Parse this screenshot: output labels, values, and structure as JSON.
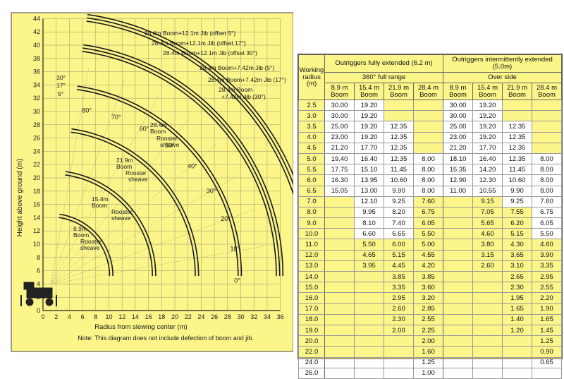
{
  "diagram": {
    "y_axis_label": "Height above ground (m)",
    "x_axis_label": "Radius from slewing center (m)",
    "note": "Note: This diagram does not include defection of boom and jib.",
    "y_ticks": [
      "0",
      "2",
      "4",
      "6",
      "8",
      "10",
      "12",
      "14",
      "16",
      "18",
      "20",
      "22",
      "24",
      "26",
      "28",
      "30",
      "32",
      "34",
      "36",
      "38",
      "40",
      "42",
      "44"
    ],
    "x_ticks": [
      "0",
      "2",
      "4",
      "6",
      "8",
      "10",
      "12",
      "14",
      "16",
      "18",
      "20",
      "22",
      "24",
      "26",
      "28",
      "30",
      "32",
      "34",
      "36"
    ],
    "angle_labels": [
      "80°",
      "70°",
      "60°",
      "50°",
      "40°",
      "30°",
      "20°",
      "10°",
      "0°"
    ],
    "jib_angle_labels": [
      "30°",
      "17°",
      "5°"
    ],
    "curve_labels": {
      "boom_28_4_jib_12_1_5": "28.4m Boom+12.1m Jib (offset 5°)",
      "boom_28_4_jib_12_1_17": "28.4m Boom+12.1m Jib (offset 17°)",
      "boom_28_4_jib_12_1_30": "28.4m Boom+12.1m Jib (offset 30°)",
      "boom_28_4_jib_7_42_5": "28.4m Boom+7.42m Jib (5°)",
      "boom_28_4_jib_7_42_17": "28.4m Boom+7.42m Jib (17°)",
      "boom_28_4_jib_7_42_30_a": "28.4m Boom",
      "boom_28_4_jib_7_42_30_b": "+7.42m Jib (30°)",
      "boom_28_4_a": "28.4m",
      "boom_28_4_b": "Boom",
      "boom_28_4_c": "Rooster",
      "boom_28_4_d": "sheave",
      "boom_21_9_a": "21.9m",
      "boom_21_9_b": "Boom",
      "boom_21_9_c": "Rooster",
      "boom_21_9_d": "sheave",
      "boom_15_4_a": "15.4m",
      "boom_15_4_b": "Boom",
      "boom_15_4_c": "Rooster",
      "boom_15_4_d": "sheave",
      "boom_8_9_a": "8.9m",
      "boom_8_9_b": "Boom",
      "boom_8_9_c": "Rooster",
      "boom_8_9_d": "sheave"
    }
  },
  "table": {
    "radius_header": "Working radius (m)",
    "group_full": "Outriggers fully extended (6.2 m)",
    "group_full_sub": "360° full range",
    "group_inter": "Outriggers intermittently extended (5.0m)",
    "group_inter_sub": "Over side",
    "boom_headers": [
      "8.9 m Boom",
      "15.4 m Boom",
      "21.9 m Boom",
      "28.4 m Boom",
      "8.9 m Boom",
      "15.4 m Boom",
      "21.9 m Boom",
      "28.4 m Boom"
    ],
    "rows": [
      [
        "2.5",
        "30.00",
        "19.20",
        "",
        "",
        "30.00",
        "19.20",
        "",
        ""
      ],
      [
        "3.0",
        "30.00",
        "19.20",
        "",
        "",
        "30.00",
        "19.20",
        "",
        ""
      ],
      [
        "3.5",
        "25.00",
        "19.20",
        "12.35",
        "",
        "25.00",
        "19.20",
        "12.35",
        ""
      ],
      [
        "4.0",
        "23.00",
        "19.20",
        "12.35",
        "",
        "23.00",
        "19.20",
        "12.35",
        ""
      ],
      [
        "4.5",
        "21.20",
        "17.70",
        "12.35",
        "",
        "21.20",
        "17.70",
        "12.35",
        ""
      ],
      [
        "5.0",
        "19.40",
        "16.40",
        "12.35",
        "8.00",
        "18.10",
        "16.40",
        "12.35",
        "8.00"
      ],
      [
        "5.5",
        "17.75",
        "15.10",
        "11.45",
        "8.00",
        "15.35",
        "14.20",
        "11.45",
        "8.00"
      ],
      [
        "6.0",
        "16.30",
        "13.95",
        "10.60",
        "8.00",
        "12.90",
        "12.30",
        "10.60",
        "8.00"
      ],
      [
        "6.5",
        "15.05",
        "13.00",
        "9.90",
        "8.00",
        "11.00",
        "10.55",
        "9.90",
        "8.00"
      ],
      [
        "7.0",
        "",
        "12.10",
        "9.25",
        "7.60",
        "",
        "9.15",
        "9.25",
        "7.60"
      ],
      [
        "8.0",
        "",
        "9.95",
        "8.20",
        "6.75",
        "",
        "7.05",
        "7.55",
        "6.75"
      ],
      [
        "9.0",
        "",
        "8.10",
        "7.40",
        "6.05",
        "",
        "5.65",
        "6.20",
        "6.05"
      ],
      [
        "10.0",
        "",
        "6.60",
        "6.65",
        "5.50",
        "",
        "4.60",
        "5.15",
        "5.50"
      ],
      [
        "11.0",
        "",
        "5.50",
        "6.00",
        "5.00",
        "",
        "3.80",
        "4.30",
        "4.60"
      ],
      [
        "12.0",
        "",
        "4.65",
        "5.15",
        "4.55",
        "",
        "3.15",
        "3.65",
        "3.90"
      ],
      [
        "13.0",
        "",
        "3.95",
        "4.45",
        "4.20",
        "",
        "2.60",
        "3.10",
        "3.35"
      ],
      [
        "14.0",
        "",
        "",
        "3.85",
        "3.85",
        "",
        "",
        "2.65",
        "2.95"
      ],
      [
        "15.0",
        "",
        "",
        "3.35",
        "3.60",
        "",
        "",
        "2.30",
        "2.55"
      ],
      [
        "16.0",
        "",
        "",
        "2.95",
        "3.20",
        "",
        "",
        "1.95",
        "2.20"
      ],
      [
        "17.0",
        "",
        "",
        "2.60",
        "2.85",
        "",
        "",
        "1.65",
        "1.90"
      ],
      [
        "18.0",
        "",
        "",
        "2.30",
        "2.55",
        "",
        "",
        "1.40",
        "1.65"
      ],
      [
        "19.0",
        "",
        "",
        "2.00",
        "2.25",
        "",
        "",
        "1.20",
        "1.45"
      ],
      [
        "20.0",
        "",
        "",
        "",
        "2.00",
        "",
        "",
        "",
        "1.25"
      ],
      [
        "22.0",
        "",
        "",
        "",
        "1.60",
        "",
        "",
        "",
        "0.90"
      ],
      [
        "24.0",
        "",
        "",
        "",
        "1.25",
        "",
        "",
        "",
        "0.65"
      ],
      [
        "26.0",
        "",
        "",
        "",
        "1.00",
        "",
        "",
        "",
        ""
      ]
    ]
  },
  "colors": {
    "panel": "#fbf58a",
    "ink": "#1a1a1a",
    "grid": "#8a8a6a",
    "white": "#ffffff"
  }
}
